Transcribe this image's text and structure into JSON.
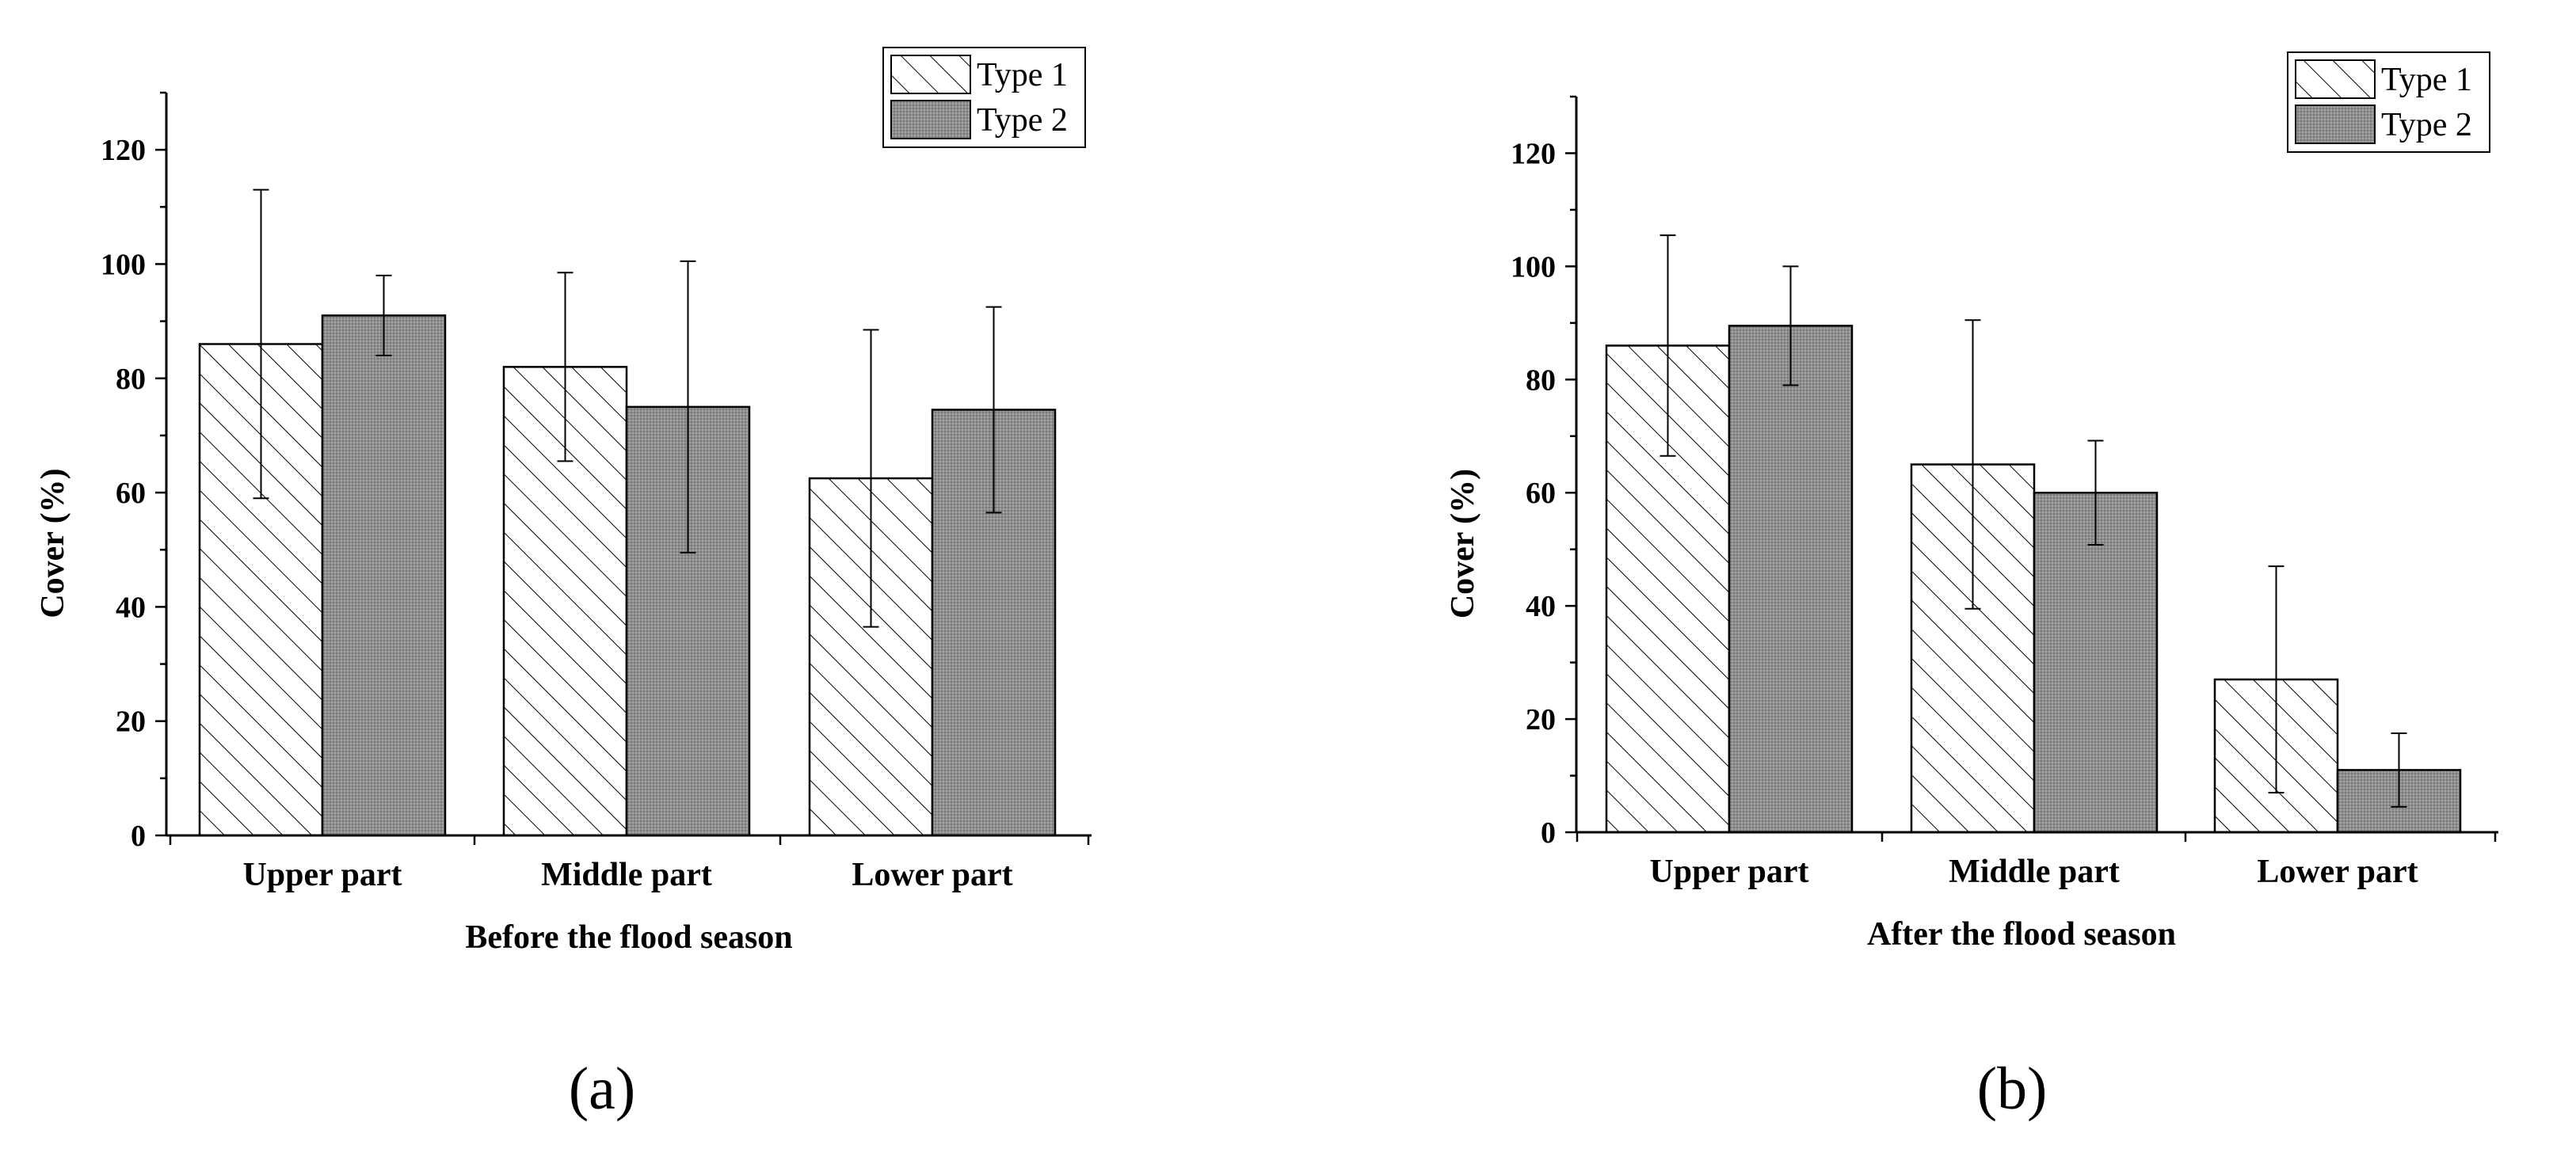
{
  "chart_data": [
    {
      "type": "bar",
      "panel_label": "(a)",
      "title": "",
      "xlabel": "Before the flood season",
      "ylabel": "Cover (%)",
      "ylim": [
        0,
        130
      ],
      "yticks": [
        0,
        20,
        40,
        60,
        80,
        100,
        120
      ],
      "categories": [
        "Upper part",
        "Middle part",
        "Lower part"
      ],
      "series": [
        {
          "name": "Type 1",
          "values": [
            86,
            82,
            62.5
          ],
          "error": [
            27,
            16.5,
            26
          ],
          "pattern": "hatch"
        },
        {
          "name": "Type 2",
          "values": [
            91,
            75,
            74.5
          ],
          "error": [
            7,
            25.5,
            18
          ],
          "pattern": "gray"
        }
      ],
      "legend_position": "top-right",
      "grid": false
    },
    {
      "type": "bar",
      "panel_label": "(b)",
      "title": "",
      "xlabel": "After the flood season",
      "ylabel": "Cover (%)",
      "ylim": [
        0,
        130
      ],
      "yticks": [
        0,
        20,
        40,
        60,
        80,
        100,
        120
      ],
      "categories": [
        "Upper part",
        "Middle part",
        "Lower part"
      ],
      "series": [
        {
          "name": "Type 1",
          "values": [
            86,
            65,
            27
          ],
          "error": [
            19.5,
            25.5,
            20
          ],
          "pattern": "hatch"
        },
        {
          "name": "Type 2",
          "values": [
            89.5,
            60,
            11
          ],
          "error": [
            10.5,
            9.2,
            6.5
          ],
          "pattern": "gray"
        }
      ],
      "legend_position": "top-right",
      "grid": false
    }
  ],
  "colors": {
    "type2_fill": "#8c8c8c",
    "type1_fill": "#ffffff",
    "axis": "#000000"
  }
}
